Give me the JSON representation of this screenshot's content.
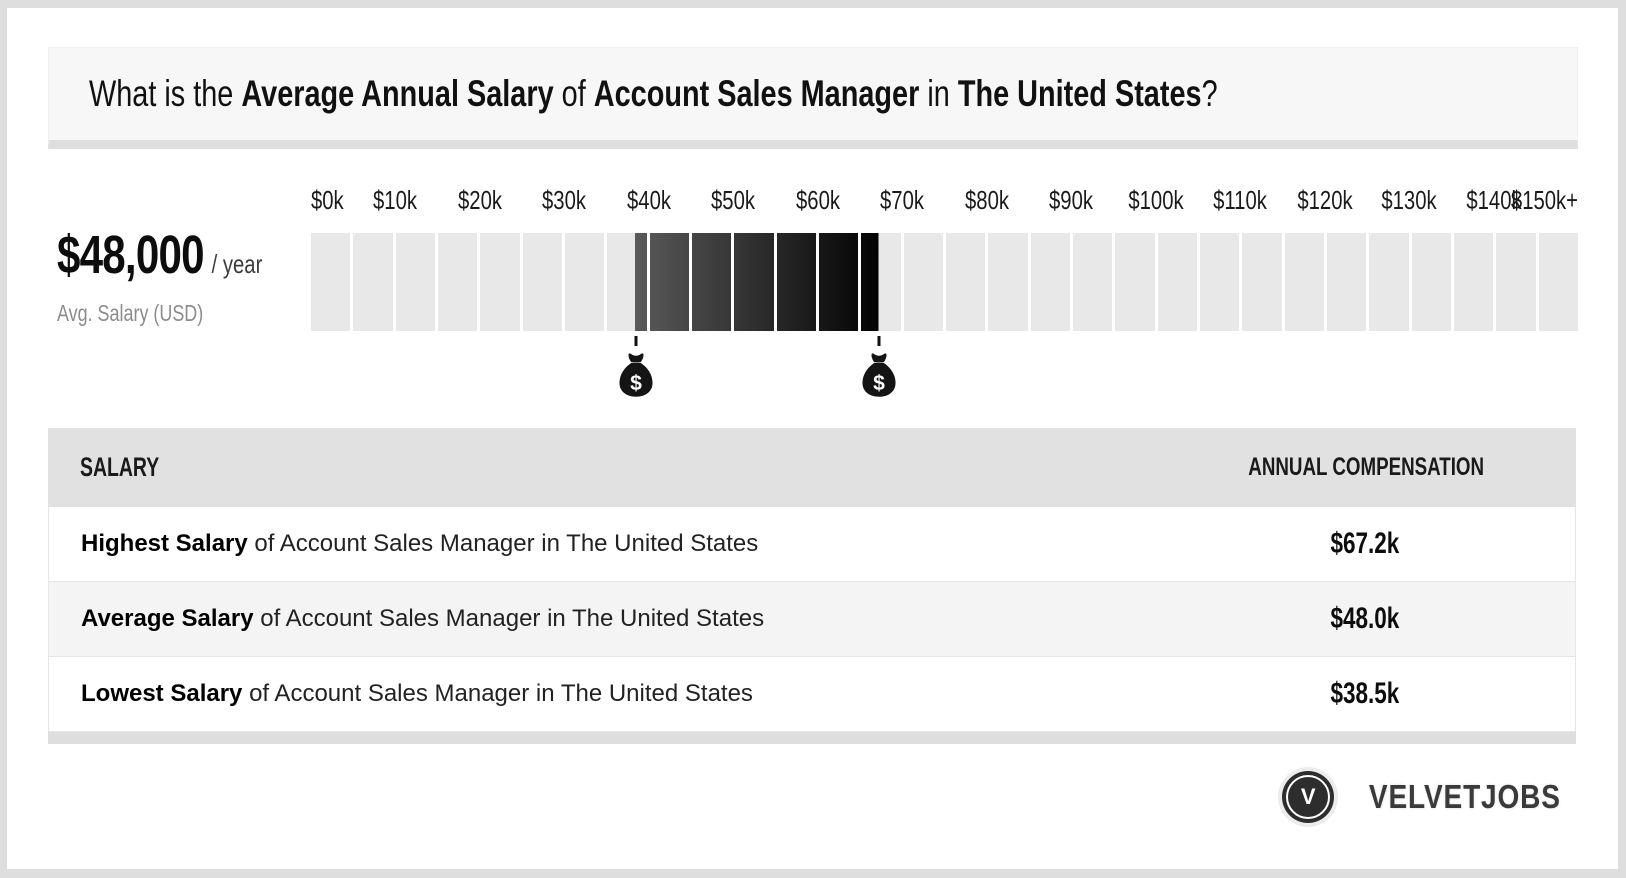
{
  "header": {
    "title_parts": [
      {
        "text": "What is the ",
        "bold": false
      },
      {
        "text": "Average Annual Salary",
        "bold": true
      },
      {
        "text": " of ",
        "bold": false
      },
      {
        "text": "Account Sales Manager",
        "bold": true
      },
      {
        "text": " in ",
        "bold": false
      },
      {
        "text": "The United States",
        "bold": true
      },
      {
        "text": "?",
        "bold": false
      }
    ]
  },
  "summary": {
    "amount": "$48,000",
    "per": "/ year",
    "caption": "Avg. Salary (USD)"
  },
  "chart_data": {
    "type": "range-scale-bar",
    "title": "Average Annual Salary of Account Sales Manager in The United States",
    "axis_tick_labels": [
      "$0k",
      "$10k",
      "$20k",
      "$30k",
      "$40k",
      "$50k",
      "$60k",
      "$70k",
      "$80k",
      "$90k",
      "$100k",
      "$110k",
      "$120k",
      "$130k",
      "$140k",
      "$150k+"
    ],
    "axis_min_k": 0,
    "axis_max_k": 150,
    "segment_size_k": 5,
    "highlight_range_k": {
      "low": 38.5,
      "high": 67.2
    },
    "average_k": 48.0,
    "markers": [
      {
        "name": "lowest-salary-marker",
        "value_k": 38.5,
        "icon": "money-bag-icon",
        "symbol": "$"
      },
      {
        "name": "highest-salary-marker",
        "value_k": 67.2,
        "icon": "money-bag-icon",
        "symbol": "$"
      }
    ],
    "legend_position": "none",
    "grid": false,
    "colors": {
      "track": "#e8e8e8",
      "range_gradient_start": "#5a5a5a",
      "range_gradient_end": "#020202"
    }
  },
  "table": {
    "headers": [
      "SALARY",
      "ANNUAL COMPENSATION"
    ],
    "rows": [
      {
        "label_bold": "Highest Salary",
        "label_rest": " of Account Sales Manager in The United States",
        "value": "$67.2k"
      },
      {
        "label_bold": "Average Salary",
        "label_rest": " of Account Sales Manager in The United States",
        "value": "$48.0k"
      },
      {
        "label_bold": "Lowest Salary",
        "label_rest": " of Account Sales Manager in The United States",
        "value": "$38.5k"
      }
    ]
  },
  "footer": {
    "brand_name": "VELVETJOBS",
    "brand_initial": "V"
  }
}
